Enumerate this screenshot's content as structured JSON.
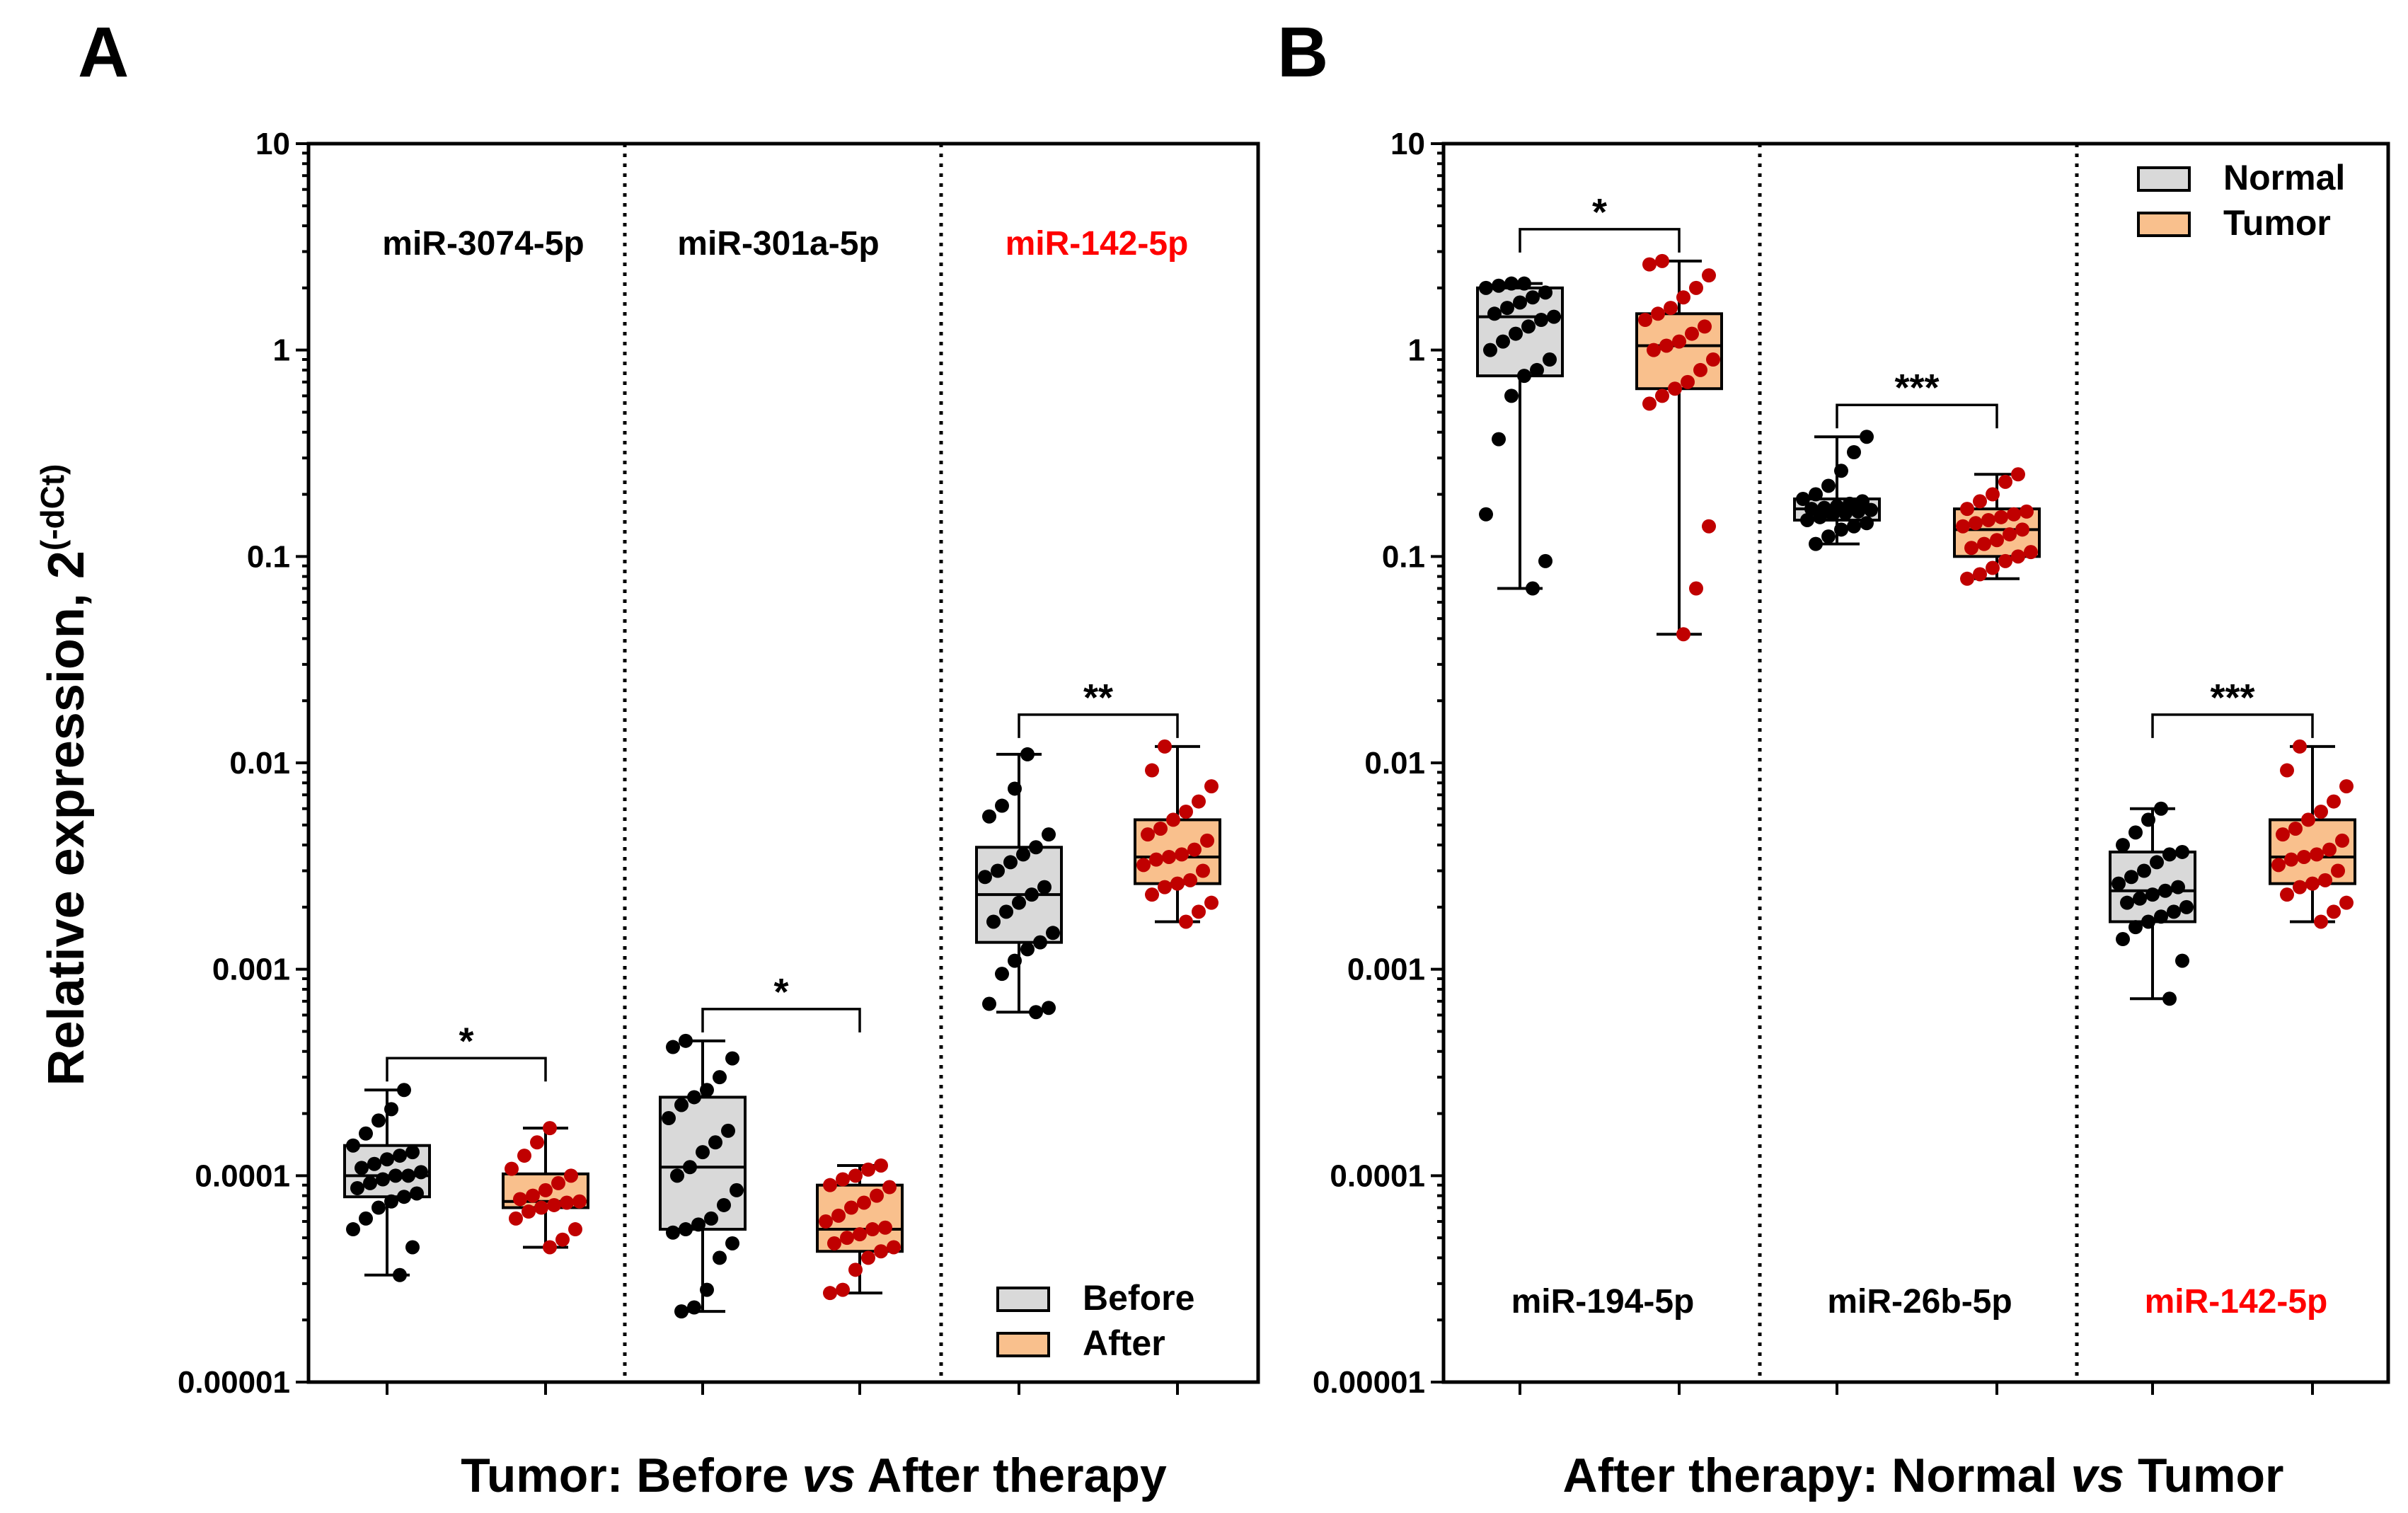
{
  "chart_data": [
    {
      "type": "box",
      "panel": "A",
      "xlabel": {
        "prefix": "Tumor: Before ",
        "italic": "vs",
        "suffix": " After therapy"
      },
      "ylabel": {
        "base": "Relative expression, 2",
        "sup": "(-dCt)"
      },
      "yscale": "log10",
      "ylim": [
        1e-05,
        10
      ],
      "yticks": [
        "0.00001",
        "0.0001",
        "0.001",
        "0.01",
        "0.1",
        "1",
        "10"
      ],
      "legend": {
        "position": "bottom-right",
        "entries": [
          "Before",
          "After"
        ]
      },
      "colors": {
        "first": "#d9d9d9",
        "second": "#f9c08d",
        "dot_first": "#000000",
        "dot_second": "#c00000",
        "highlight_label": "#ff0000"
      },
      "groups": [
        {
          "label": "miR-3074-5p",
          "highlight": false,
          "significance": "*",
          "series": [
            {
              "name": "Before",
              "min": 3.3e-05,
              "q1": 7.9e-05,
              "median": 0.0001,
              "q3": 0.00014,
              "max": 0.00026,
              "points": [
                3.3e-05,
                4.5e-05,
                5.5e-05,
                6.2e-05,
                7e-05,
                7.5e-05,
                7.9e-05,
                8.2e-05,
                8.7e-05,
                9.2e-05,
                9.6e-05,
                0.0001,
                0.0001,
                0.000104,
                0.000109,
                0.000114,
                0.00012,
                0.000125,
                0.00013,
                0.00014,
                0.00016,
                0.000185,
                0.00021,
                0.00026
              ]
            },
            {
              "name": "After",
              "min": 4.5e-05,
              "q1": 7e-05,
              "median": 7.5e-05,
              "q3": 0.000102,
              "max": 0.00017,
              "points": [
                4.5e-05,
                4.9e-05,
                5.5e-05,
                6.2e-05,
                6.7e-05,
                7e-05,
                7.2e-05,
                7.4e-05,
                7.5e-05,
                7.7e-05,
                8e-05,
                8.5e-05,
                9.2e-05,
                0.0001,
                0.000108,
                0.000125,
                0.000145,
                0.00017
              ]
            }
          ]
        },
        {
          "label": "miR-301a-5p",
          "highlight": false,
          "significance": "*",
          "series": [
            {
              "name": "Before",
              "min": 2.2e-05,
              "q1": 5.5e-05,
              "median": 0.00011,
              "q3": 0.00024,
              "max": 0.00045,
              "points": [
                2.2e-05,
                2.3e-05,
                2.8e-05,
                4e-05,
                4.7e-05,
                5.3e-05,
                5.5e-05,
                5.8e-05,
                6.2e-05,
                7.2e-05,
                8.5e-05,
                0.0001,
                0.00011,
                0.00013,
                0.000145,
                0.000165,
                0.00019,
                0.00022,
                0.00024,
                0.00026,
                0.0003,
                0.00037,
                0.00042,
                0.00045
              ]
            },
            {
              "name": "After",
              "min": 2.7e-05,
              "q1": 4.3e-05,
              "median": 5.5e-05,
              "q3": 9e-05,
              "max": 0.000112,
              "points": [
                2.7e-05,
                2.8e-05,
                3.5e-05,
                4e-05,
                4.3e-05,
                4.5e-05,
                4.7e-05,
                5e-05,
                5.2e-05,
                5.5e-05,
                5.6e-05,
                6e-05,
                6.4e-05,
                7e-05,
                7.4e-05,
                8e-05,
                8.8e-05,
                9e-05,
                9.6e-05,
                0.0001,
                0.000107,
                0.000112
              ]
            }
          ]
        },
        {
          "label": "miR-142-5p",
          "highlight": true,
          "significance": "**",
          "series": [
            {
              "name": "Before",
              "min": 0.00062,
              "q1": 0.00135,
              "median": 0.0023,
              "q3": 0.0039,
              "max": 0.011,
              "points": [
                0.00062,
                0.00065,
                0.00068,
                0.00095,
                0.0011,
                0.00125,
                0.00135,
                0.0015,
                0.0017,
                0.0019,
                0.0021,
                0.0023,
                0.0025,
                0.0028,
                0.003,
                0.0033,
                0.0036,
                0.0039,
                0.0045,
                0.0055,
                0.0062,
                0.0075,
                0.011
              ]
            },
            {
              "name": "After",
              "min": 0.0017,
              "q1": 0.0026,
              "median": 0.0035,
              "q3": 0.0053,
              "max": 0.012,
              "points": [
                0.0017,
                0.0019,
                0.0021,
                0.0023,
                0.0025,
                0.0026,
                0.0027,
                0.003,
                0.0032,
                0.0034,
                0.0035,
                0.0036,
                0.0038,
                0.0042,
                0.0045,
                0.0048,
                0.0053,
                0.0058,
                0.0065,
                0.0077,
                0.0092,
                0.012
              ]
            }
          ]
        }
      ]
    },
    {
      "type": "box",
      "panel": "B",
      "xlabel": {
        "prefix": "After therapy: Normal ",
        "italic": "vs",
        "suffix": " Tumor"
      },
      "yscale": "log10",
      "ylim": [
        1e-05,
        10
      ],
      "yticks": [
        "0.00001",
        "0.0001",
        "0.001",
        "0.01",
        "0.1",
        "1",
        "10"
      ],
      "legend": {
        "position": "top-right",
        "entries": [
          "Normal",
          "Tumor"
        ]
      },
      "colors": {
        "first": "#d9d9d9",
        "second": "#f9c08d",
        "dot_first": "#000000",
        "dot_second": "#c00000",
        "highlight_label": "#ff0000"
      },
      "groups": [
        {
          "label": "miR-194-5p",
          "highlight": false,
          "significance": "*",
          "series": [
            {
              "name": "Normal",
              "min": 0.07,
              "q1": 0.75,
              "median": 1.45,
              "q3": 2.0,
              "max": 2.1,
              "points": [
                0.07,
                0.095,
                0.16,
                0.37,
                0.6,
                0.75,
                0.8,
                0.9,
                1.0,
                1.1,
                1.2,
                1.3,
                1.4,
                1.45,
                1.5,
                1.6,
                1.7,
                1.8,
                1.9,
                2.0,
                2.05,
                2.1,
                2.1
              ]
            },
            {
              "name": "Tumor",
              "min": 0.042,
              "q1": 0.65,
              "median": 1.05,
              "q3": 1.5,
              "max": 2.7,
              "points": [
                0.042,
                0.07,
                0.14,
                0.55,
                0.6,
                0.65,
                0.7,
                0.8,
                0.9,
                1.0,
                1.05,
                1.1,
                1.2,
                1.3,
                1.4,
                1.5,
                1.6,
                1.8,
                2.0,
                2.3,
                2.6,
                2.7
              ]
            }
          ]
        },
        {
          "label": "miR-26b-5p",
          "highlight": false,
          "significance": "***",
          "series": [
            {
              "name": "Normal",
              "min": 0.115,
              "q1": 0.15,
              "median": 0.17,
              "q3": 0.19,
              "max": 0.38,
              "points": [
                0.115,
                0.125,
                0.135,
                0.14,
                0.145,
                0.15,
                0.155,
                0.16,
                0.162,
                0.165,
                0.168,
                0.17,
                0.172,
                0.175,
                0.18,
                0.185,
                0.19,
                0.2,
                0.22,
                0.26,
                0.32,
                0.38
              ]
            },
            {
              "name": "Tumor",
              "min": 0.078,
              "q1": 0.1,
              "median": 0.135,
              "q3": 0.17,
              "max": 0.25,
              "points": [
                0.078,
                0.082,
                0.088,
                0.095,
                0.1,
                0.105,
                0.11,
                0.115,
                0.12,
                0.128,
                0.135,
                0.14,
                0.145,
                0.15,
                0.155,
                0.16,
                0.165,
                0.17,
                0.185,
                0.2,
                0.23,
                0.25
              ]
            }
          ]
        },
        {
          "label": "miR-142-5p",
          "highlight": true,
          "significance": "***",
          "series": [
            {
              "name": "Normal",
              "min": 0.00072,
              "q1": 0.0017,
              "median": 0.0024,
              "q3": 0.0037,
              "max": 0.006,
              "points": [
                0.00072,
                0.0011,
                0.0014,
                0.0016,
                0.0017,
                0.0018,
                0.0019,
                0.002,
                0.0021,
                0.0022,
                0.0023,
                0.0024,
                0.0025,
                0.0026,
                0.0028,
                0.003,
                0.0033,
                0.0036,
                0.0037,
                0.004,
                0.0046,
                0.0053,
                0.006
              ]
            },
            {
              "name": "Tumor",
              "min": 0.0017,
              "q1": 0.0026,
              "median": 0.0035,
              "q3": 0.0053,
              "max": 0.012,
              "points": [
                0.0017,
                0.0019,
                0.0021,
                0.0023,
                0.0025,
                0.0026,
                0.0027,
                0.003,
                0.0032,
                0.0034,
                0.0035,
                0.0036,
                0.0038,
                0.0042,
                0.0045,
                0.0048,
                0.0053,
                0.0058,
                0.0065,
                0.0077,
                0.0092,
                0.012
              ]
            }
          ]
        }
      ]
    }
  ]
}
